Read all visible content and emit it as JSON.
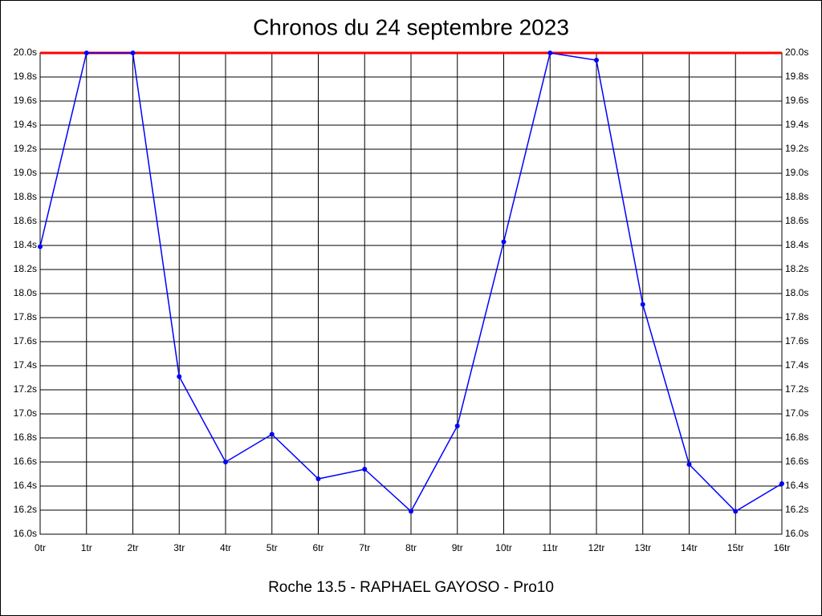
{
  "chart_data": {
    "type": "line",
    "title": "Chronos du 24 septembre 2023",
    "xlabel": "Roche 13.5 - RAPHAEL GAYOSO - Pro10",
    "categories": [
      "0tr",
      "1tr",
      "2tr",
      "3tr",
      "4tr",
      "5tr",
      "6tr",
      "7tr",
      "8tr",
      "9tr",
      "10tr",
      "11tr",
      "12tr",
      "13tr",
      "14tr",
      "15tr",
      "16tr"
    ],
    "series": [
      {
        "color": "#0000ff",
        "values": [
          18.39,
          20.0,
          20.0,
          17.31,
          16.6,
          16.83,
          16.46,
          16.54,
          16.19,
          16.9,
          18.43,
          20.0,
          19.94,
          17.91,
          16.58,
          16.19,
          16.42
        ]
      }
    ],
    "ylim": [
      16,
      20
    ],
    "yticks": [
      {
        "value": 16,
        "label": "16.0s"
      },
      {
        "value": 16.2,
        "label": "16.2s"
      },
      {
        "value": 16.4,
        "label": "16.4s"
      },
      {
        "value": 16.6,
        "label": "16.6s"
      },
      {
        "value": 16.8,
        "label": "16.8s"
      },
      {
        "value": 17,
        "label": "17.0s"
      },
      {
        "value": 17.2,
        "label": "17.2s"
      },
      {
        "value": 17.4,
        "label": "17.4s"
      },
      {
        "value": 17.6,
        "label": "17.6s"
      },
      {
        "value": 17.8,
        "label": "17.8s"
      },
      {
        "value": 18,
        "label": "18.0s"
      },
      {
        "value": 18.2,
        "label": "18.2s"
      },
      {
        "value": 18.4,
        "label": "18.4s"
      },
      {
        "value": 18.6,
        "label": "18.6s"
      },
      {
        "value": 18.8,
        "label": "18.8s"
      },
      {
        "value": 19,
        "label": "19.0s"
      },
      {
        "value": 19.2,
        "label": "19.2s"
      },
      {
        "value": 19.4,
        "label": "19.4s"
      },
      {
        "value": 19.6,
        "label": "19.6s"
      },
      {
        "value": 19.8,
        "label": "19.8s"
      },
      {
        "value": 20,
        "label": "20.0s"
      }
    ],
    "reference_line": {
      "value": 20,
      "color": "#ff0000"
    },
    "grid": true
  }
}
